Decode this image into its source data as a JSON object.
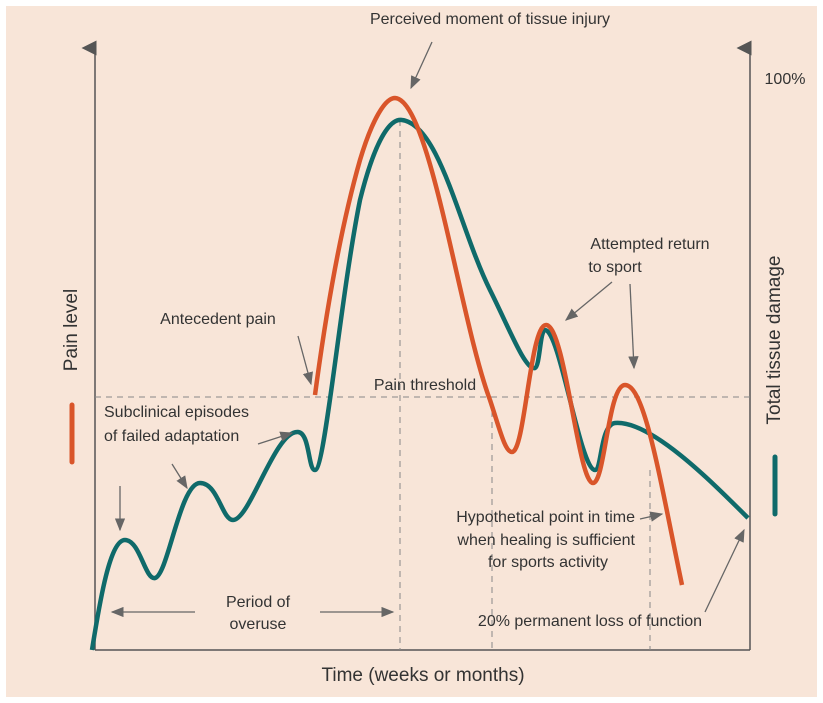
{
  "title": "Perceived moment of tissue injury",
  "axes": {
    "y_left": "Pain level",
    "y_right": "Total tissue damage",
    "y_right_top": "100%",
    "x": "Time (weeks or months)"
  },
  "annotations": {
    "return": [
      "Attempted return",
      "to sport"
    ],
    "antecedent": "Antecedent pain",
    "threshold": "Pain threshold",
    "subclinical": [
      "Subclinical episodes",
      "of failed adaptation"
    ],
    "healing": [
      "Hypothetical point in time",
      "when healing is sufficient",
      "for sports activity"
    ],
    "overuse": [
      "Period of",
      "overuse"
    ],
    "loss": "20% permanent loss of function"
  }
}
